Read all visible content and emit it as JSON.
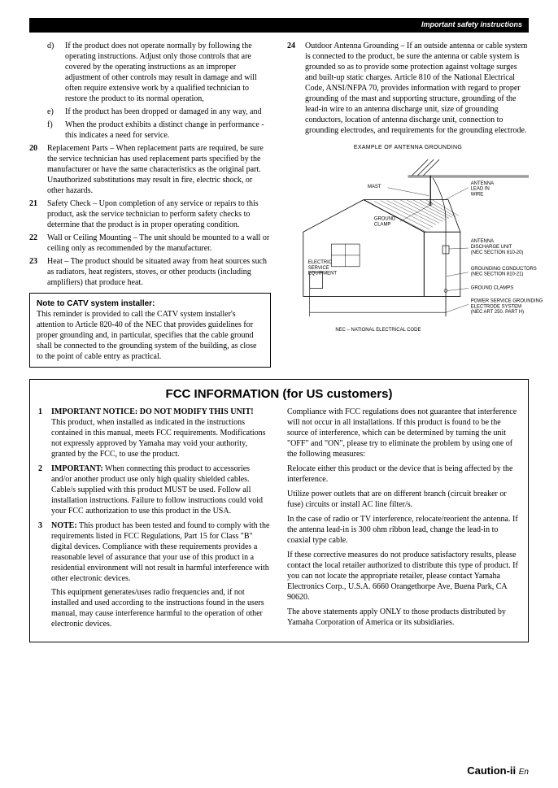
{
  "header": "Important safety instructions",
  "left": {
    "sub": [
      {
        "l": "d)",
        "t": "If the product does not operate normally by following the operating instructions. Adjust only those controls that are covered by the operating instructions as an improper adjustment of other controls may result in damage and will often require extensive work by a qualified technician to restore the product to its normal operation,"
      },
      {
        "l": "e)",
        "t": "If the product has been dropped or damaged in any way, and"
      },
      {
        "l": "f)",
        "t": "When the product exhibits a distinct change in performance - this indicates a need for service."
      }
    ],
    "items": [
      {
        "n": "20",
        "t": "Replacement Parts – When replacement parts are required, be sure the service technician has used replacement parts specified by the manufacturer or have the same characteristics as the original part. Unauthorized substitutions may result in fire, electric shock, or other hazards."
      },
      {
        "n": "21",
        "t": "Safety Check – Upon completion of any service or repairs to this product, ask the service technician to perform safety checks to determine that the product is in proper operating condition."
      },
      {
        "n": "22",
        "t": "Wall or Ceiling Mounting – The unit should be mounted to a wall or ceiling only as recommended by the manufacturer."
      },
      {
        "n": "23",
        "t": "Heat – The product should be situated away from heat sources such as radiators, heat registers, stoves, or other products (including amplifiers) that produce heat."
      }
    ],
    "note_title": "Note to CATV system installer:",
    "note_body": "This reminder is provided to call the CATV system installer's attention to Article 820-40 of the NEC that provides guidelines for proper grounding and, in particular, specifies that the cable ground shall be connected to the grounding system of the building, as close to the point of cable entry as practical."
  },
  "right": {
    "item": {
      "n": "24",
      "t": "Outdoor Antenna Grounding – If an outside antenna or cable system is connected to the product, be sure the antenna or cable system is grounded so as to provide some protection against voltage surges and built-up static charges. Article 810 of the National Electrical Code, ANSI/NFPA 70, provides information with regard to proper grounding of the mast and supporting structure, grounding of the lead-in wire to an antenna discharge unit, size of grounding conductors, location of antenna discharge unit, connection to grounding electrodes, and requirements for the grounding electrode."
    },
    "diagram_title": "EXAMPLE OF ANTENNA GROUNDING",
    "labels": {
      "mast": "MAST",
      "antenna_leadin": "ANTENNA\nLEAD IN\nWIRE",
      "ground_clamp": "GROUND\nCLAMP",
      "antenna_discharge": "ANTENNA\nDISCHARGE UNIT\n(NEC SECTION 810-20)",
      "electric_service": "ELECTRIC\nSERVICE\nEQUIPMENT",
      "grounding_conductors": "GROUNDING CONDUCTORS\n(NEC SECTION 810-21)",
      "ground_clamps": "GROUND CLAMPS",
      "power_service": "POWER SERVICE GROUNDING\nELECTRODE SYSTEM\n(NEC ART 250. PART H)",
      "nec": "NEC – NATIONAL ELECTRICAL CODE"
    }
  },
  "fcc": {
    "title": "FCC INFORMATION (for US customers)",
    "left": [
      {
        "n": "1",
        "title": "IMPORTANT NOTICE: DO NOT MODIFY THIS UNIT!",
        "t": "This product, when installed as indicated in the instructions contained in this manual, meets FCC requirements. Modifications not expressly approved by Yamaha may void your authority, granted by the FCC, to use the product."
      },
      {
        "n": "2",
        "title": "IMPORTANT:",
        "t": " When connecting this product to accessories and/or another product use only high quality shielded cables. Cable/s supplied with this product MUST be used. Follow all installation instructions. Failure to follow instructions could void your FCC authorization to use this product in the USA."
      },
      {
        "n": "3",
        "title": "NOTE:",
        "t": " This product has been tested and found to comply with the requirements listed in FCC Regulations, Part 15 for Class \"B\" digital devices. Compliance with these requirements provides a reasonable level of assurance that your use of this product in a residential environment will not result in harmful interference with other electronic devices.",
        "extra": "This equipment generates/uses radio frequencies and, if not installed and used according to the instructions found in the users manual, may cause interference harmful to the operation of other electronic devices."
      }
    ],
    "right": [
      "Compliance with FCC regulations does not guarantee that interference will not occur in all installations. If this product is found to be the source of interference, which can be determined by turning the unit \"OFF\" and \"ON\", please try to eliminate the problem by using one of the following measures:",
      "Relocate either this product or the device that is being affected by the interference.",
      "Utilize power outlets that are on different branch (circuit breaker or fuse) circuits or install AC line filter/s.",
      "In the case of radio or TV interference, relocate/reorient the antenna. If the antenna lead-in is 300 ohm ribbon lead, change the lead-in to coaxial type cable.",
      "If these corrective measures do not produce satisfactory results, please contact the local retailer authorized to distribute this type of product. If you can not locate the appropriate retailer, please contact Yamaha Electronics Corp., U.S.A. 6660 Orangethorpe Ave, Buena Park, CA 90620.",
      "The above statements apply ONLY to those products distributed by Yamaha Corporation of America or its subsidiaries."
    ]
  },
  "footer": {
    "main": "Caution-ii",
    "en": "En"
  }
}
